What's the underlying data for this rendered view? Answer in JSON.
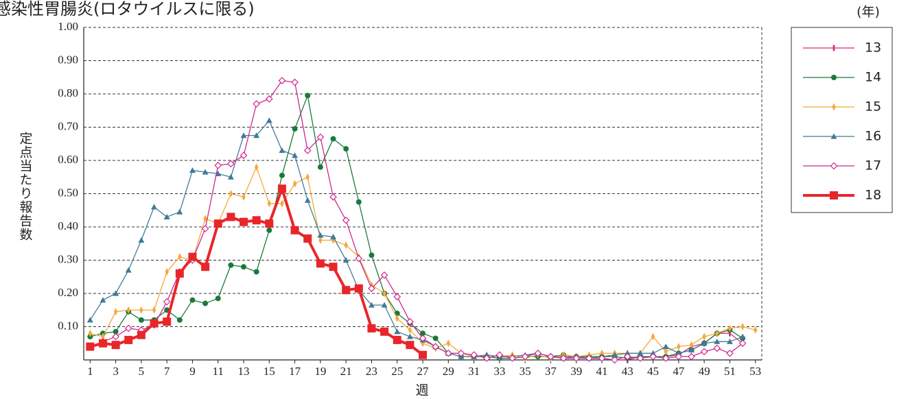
{
  "chart_data": {
    "type": "line",
    "title": "感染性胃腸炎(ロタウイルスに限る)",
    "y_label": "定点当たり報告数",
    "x_label": "週",
    "legend_title": "(年)",
    "legend_position": "right",
    "grid": true,
    "x": [
      1,
      2,
      3,
      4,
      5,
      6,
      7,
      8,
      9,
      10,
      11,
      12,
      13,
      14,
      15,
      16,
      17,
      18,
      19,
      20,
      21,
      22,
      23,
      24,
      25,
      26,
      27,
      28,
      29,
      30,
      31,
      32,
      33,
      34,
      35,
      36,
      37,
      38,
      39,
      40,
      41,
      42,
      43,
      44,
      45,
      46,
      47,
      48,
      49,
      50,
      51,
      52,
      53
    ],
    "xlim": [
      0.5,
      53.5
    ],
    "xticks": [
      1,
      3,
      5,
      7,
      9,
      11,
      13,
      15,
      17,
      19,
      21,
      23,
      25,
      27,
      29,
      31,
      33,
      35,
      37,
      39,
      41,
      43,
      45,
      47,
      49,
      51,
      53
    ],
    "ylim": [
      0,
      1
    ],
    "yticks": [
      {
        "value": 0.1,
        "label": "0.10"
      },
      {
        "value": 0.2,
        "label": "0.20"
      },
      {
        "value": 0.3,
        "label": "0.30"
      },
      {
        "value": 0.4,
        "label": "0.40"
      },
      {
        "value": 0.5,
        "label": "0.50"
      },
      {
        "value": 0.6,
        "label": "0.60"
      },
      {
        "value": 0.7,
        "label": "0.70"
      },
      {
        "value": 0.8,
        "label": "0.80"
      },
      {
        "value": 0.9,
        "label": "0.90"
      },
      {
        "value": 1,
        "label": "1.00"
      }
    ],
    "series": [
      {
        "name": "13",
        "color": "#d6267f",
        "marker": "plus",
        "line_width": 1.3,
        "values": [
          null,
          null,
          null,
          null,
          null,
          null,
          null,
          null,
          null,
          null,
          null,
          null,
          null,
          null,
          null,
          null,
          null,
          null,
          null,
          null,
          null,
          null,
          null,
          null,
          null,
          null,
          null,
          null,
          null,
          null,
          null,
          null,
          null,
          null,
          null,
          null,
          0.01,
          0.01,
          0.01,
          0.005,
          0.005,
          0,
          0,
          0.01,
          0.01,
          0.01,
          0.015,
          0.04,
          0.05,
          0.08,
          0.08,
          0.05,
          null
        ]
      },
      {
        "name": "14",
        "color": "#1a7a3a",
        "marker": "circle",
        "line_width": 1.3,
        "values": [
          0.07,
          0.08,
          0.085,
          0.145,
          0.12,
          0.12,
          0.15,
          0.12,
          0.18,
          0.17,
          0.185,
          0.285,
          0.28,
          0.265,
          0.39,
          0.555,
          0.695,
          0.795,
          0.58,
          0.665,
          0.635,
          0.475,
          0.315,
          0.2,
          0.14,
          0.11,
          0.08,
          0.065,
          0.02,
          0.01,
          0.01,
          0.01,
          0.005,
          0.005,
          0.01,
          0.01,
          0.01,
          0.015,
          0.01,
          0.01,
          0.01,
          0.01,
          0.005,
          0.01,
          0.01,
          0.01,
          0.02,
          0.03,
          0.05,
          0.08,
          0.09,
          0.065,
          null
        ]
      },
      {
        "name": "15",
        "color": "#f5a83a",
        "marker": "diamond",
        "line_width": 1.3,
        "values": [
          0.08,
          0.07,
          0.145,
          0.15,
          0.15,
          0.15,
          0.265,
          0.31,
          0.3,
          0.425,
          0.41,
          0.5,
          0.49,
          0.58,
          0.47,
          0.47,
          0.53,
          0.55,
          0.36,
          0.36,
          0.345,
          0.31,
          0.225,
          0.2,
          0.125,
          0.09,
          0.05,
          0.035,
          0.05,
          0.02,
          0.01,
          0.015,
          0.01,
          0.015,
          0.005,
          0.015,
          0.005,
          0.015,
          0.01,
          0.015,
          0.02,
          0.02,
          0.02,
          0.02,
          0.07,
          0.025,
          0.04,
          0.045,
          0.07,
          0.08,
          0.095,
          0.1,
          0.09
        ]
      },
      {
        "name": "16",
        "color": "#3f7c98",
        "marker": "triangle",
        "line_width": 1.3,
        "values": [
          0.12,
          0.18,
          0.2,
          0.27,
          0.36,
          0.46,
          0.43,
          0.445,
          0.57,
          0.565,
          0.56,
          0.55,
          0.675,
          0.675,
          0.72,
          0.63,
          0.615,
          0.48,
          0.375,
          0.37,
          0.3,
          0.21,
          0.165,
          0.165,
          0.085,
          0.07,
          0.06,
          0.04,
          0.02,
          0.01,
          0.01,
          0.015,
          0.01,
          0.01,
          0.015,
          0.02,
          0.01,
          0.005,
          0.01,
          0.005,
          0.01,
          0.015,
          0.02,
          0.02,
          0.02,
          0.04,
          0.02,
          0.03,
          0.05,
          0.055,
          0.055,
          0.07,
          null
        ]
      },
      {
        "name": "17",
        "color": "#d1268e",
        "marker": "diamond-open",
        "line_width": 1.3,
        "values": [
          0.04,
          0.055,
          0.07,
          0.095,
          0.09,
          0.105,
          0.175,
          0.265,
          0.3,
          0.395,
          0.585,
          0.59,
          0.615,
          0.77,
          0.785,
          0.84,
          0.835,
          0.63,
          0.67,
          0.49,
          0.42,
          0.305,
          0.215,
          0.255,
          0.19,
          0.115,
          0.065,
          0.04,
          0.02,
          0.02,
          0.015,
          0.005,
          0.015,
          0.005,
          0.01,
          0.02,
          0.01,
          0.005,
          0.005,
          0.005,
          0.005,
          0,
          0.01,
          0.005,
          0.01,
          0.005,
          0.01,
          0.01,
          0.025,
          0.035,
          0.02,
          0.05,
          null
        ]
      },
      {
        "name": "18",
        "color": "#e8262a",
        "marker": "square",
        "line_width": 4,
        "values": [
          0.04,
          0.05,
          0.045,
          0.06,
          0.075,
          0.11,
          0.115,
          0.26,
          0.31,
          0.28,
          0.41,
          0.43,
          0.415,
          0.42,
          0.41,
          0.515,
          0.39,
          0.365,
          0.29,
          0.28,
          0.21,
          0.215,
          0.095,
          0.085,
          0.06,
          0.045,
          0.015,
          null,
          null,
          null,
          null,
          null,
          null,
          null,
          null,
          null,
          null,
          null,
          null,
          null,
          null,
          null,
          null,
          null,
          null,
          null,
          null,
          null,
          null,
          null,
          null,
          null,
          null
        ]
      }
    ]
  }
}
